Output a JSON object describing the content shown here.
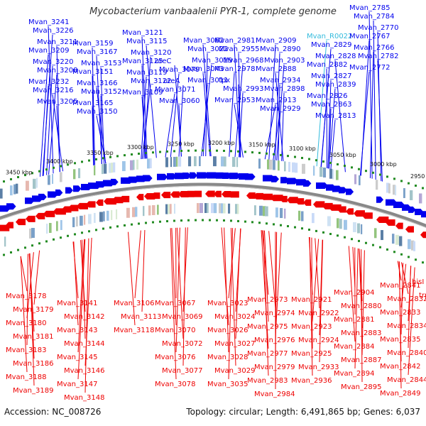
{
  "title": "Mycobacterium vanbaalenii PYR-1, complete genome",
  "footer": {
    "accession": "Accession: NC_008726",
    "summary": "Topology: circular; Length: 6,491,865 bp; Genes: 6,037"
  },
  "colors": {
    "forward_gene": "#0000ee",
    "reverse_gene": "#ee0000",
    "rna_gene": "#33bbdd",
    "backbone": "#888888",
    "tick_marker": "#228b22"
  },
  "kbp_ticks": [
    "3450 kbp",
    "3400 kbp",
    "3350 kbp",
    "3300 kbp",
    "3250 kbp",
    "3200 kbp",
    "3150 kbp",
    "3100 kbp",
    "3050 kbp",
    "3000 kbp",
    "2950 kbp"
  ],
  "top_labels": [
    "Mvan_3241",
    "Mvan_3226",
    "Mvan_3211",
    "Mvan_3209",
    "Mvan_3220",
    "Mvan_3208",
    "Mvan_3232",
    "Mvan_3216",
    "Mvan_3205",
    "Mvan_3159",
    "Mvan_3167",
    "Mvan_3153",
    "Mvan_3151",
    "Mvan_3166",
    "Mvan_3152",
    "Mvan_3165",
    "Mvan_3150",
    "Mvan_3121",
    "Mvan_3115",
    "Mvan_3120",
    "Mvan_3125",
    "Mvan_3119",
    "Mvan_3122",
    "Mvan_3109",
    "ureC",
    "Mvan_3079",
    "ureA",
    "Mvan_3071",
    "Mvan_3060",
    "Mvan_3062",
    "Mvan_3022",
    "Mvan_3019",
    "Mvan_3043",
    "Mvan_3011",
    "Mvan_2981",
    "Mvan_2955",
    "Mvan_2968",
    "Mvan_2978",
    "tpx",
    "Mvan_2993",
    "Mvan_2953",
    "Mvan_2909",
    "Mvan_2890",
    "Mvan_2903",
    "Mvan_2888",
    "Mvan_2934",
    "Mvan_2898",
    "Mvan_2913",
    "Mvan_2929",
    "Mvan_R0022",
    "Mvan_2829",
    "Mvan_2828",
    "Mvan_2882",
    "Mvan_2827",
    "Mvan_2839",
    "Mvan_2826",
    "Mvan_2863",
    "Mvan_2813",
    "Mvan_2785",
    "Mvan_2784",
    "Mvan_2770",
    "Mvan_2767",
    "Mvan_2766",
    "Mvan_2782",
    "Mvan_2772"
  ],
  "bottom_labels": [
    "Mvan_3178",
    "Mvan_3179",
    "Mvan_3180",
    "Mvan_3181",
    "Mvan_3183",
    "Mvan_3186",
    "Mvan_3188",
    "Mvan_3189",
    "Mvan_3141",
    "Mvan_3142",
    "Mvan_3143",
    "Mvan_3144",
    "Mvan_3145",
    "Mvan_3146",
    "Mvan_3147",
    "Mvan_3148",
    "Mvan_3106",
    "Mvan_3113",
    "Mvan_3118",
    "Mvan_3067",
    "Mvan_3069",
    "Mvan_3070",
    "Mvan_3072",
    "Mvan_3076",
    "Mvan_3077",
    "Mvan_3078",
    "Mvan_3023",
    "Mvan_3024",
    "Mvan_3026",
    "Mvan_3027",
    "Mvan_3028",
    "Mvan_3029",
    "Mvan_3035",
    "Mvan_2973",
    "Mvan_2974",
    "Mvan_2975",
    "Mvan_2976",
    "Mvan_2977",
    "Mvan_2979",
    "Mvan_2983",
    "Mvan_2984",
    "Mvan_2921",
    "Mvan_2922",
    "Mvan_2923",
    "Mvan_2924",
    "Mvan_2925",
    "Mvan_2933",
    "Mvan_2936",
    "Mvan_2904",
    "Mvan_2880",
    "Mvan_2881",
    "Mvan_2883",
    "Mvan_2884",
    "Mvan_2887",
    "Mvan_2894",
    "Mvan_2895",
    "Mvan_2841",
    "Mvan_2832",
    "Mvan_2833",
    "Mvan_2834",
    "Mvan_2835",
    "Mvan_2840",
    "Mvan_2842",
    "Mvan_2844",
    "Mvan_2849",
    "hisI",
    "trpC"
  ]
}
